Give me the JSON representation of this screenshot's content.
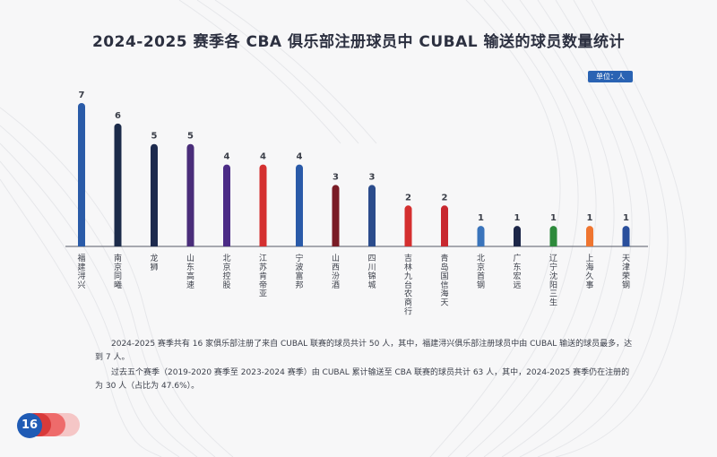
{
  "page": {
    "title": "2024-2025 赛季各 CBA 俱乐部注册球员中 CUBAL 输送的球员数量统计",
    "unit": "单位：人",
    "page_number": "16",
    "paragraphs": [
      "2024-2025 赛季共有 16 家俱乐部注册了来自 CUBAL 联赛的球员共计 50 人，其中，福建浔兴俱乐部注册球员中由 CUBAL 输送的球员最多，达到 7 人。",
      "过去五个赛季（2019-2020 赛季至 2023-2024 赛季）由 CUBAL 累计输送至 CBA 联赛的球员共计 63 人，其中，2024-2025 赛季仍在注册的为 30 人（占比为 47.6%）。"
    ]
  },
  "chart_data": {
    "type": "bar",
    "title": "2024-2025 赛季各 CBA 俱乐部注册球员中 CUBAL 输送的球员数量统计",
    "unit": "单位：人",
    "xlabel": "",
    "ylabel": "",
    "ylim": [
      0,
      7
    ],
    "grid": false,
    "categories": [
      "福建浔兴",
      "南京同曦",
      "龙狮",
      "山东高速",
      "北京控股",
      "江苏肯帝亚",
      "宁波富邦",
      "山西汾酒",
      "四川锦城",
      "吉林九台农商行",
      "青岛国信海天",
      "北京首钢",
      "广东宏远",
      "辽宁沈阳三生",
      "上海久事",
      "天津荣钢"
    ],
    "values": [
      7,
      6,
      5,
      5,
      4,
      4,
      4,
      3,
      3,
      2,
      2,
      1,
      1,
      1,
      1,
      1
    ],
    "colors": [
      "#2a5ba8",
      "#1c2b4a",
      "#1d2a4e",
      "#4a2d7a",
      "#4b2b86",
      "#d43030",
      "#2a5aa8",
      "#7a1c26",
      "#2b4c8c",
      "#d42f2f",
      "#c8282f",
      "#3a74bb",
      "#1c2648",
      "#2e8a3c",
      "#ef7530",
      "#2a4f9c"
    ]
  }
}
